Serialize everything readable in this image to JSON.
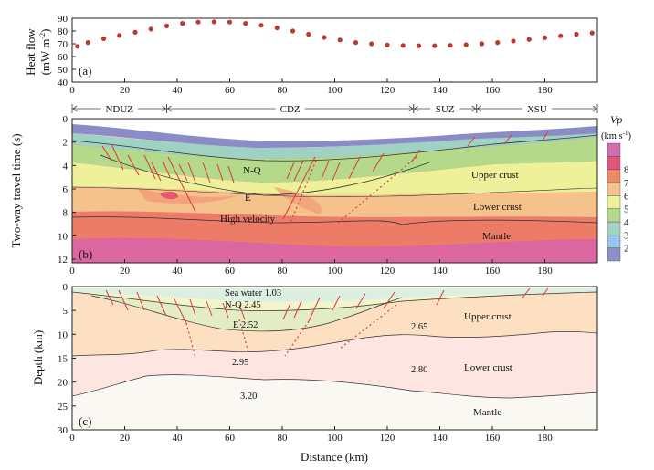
{
  "figure": {
    "panel_a": {
      "label": "(a)",
      "ylabel_line1": "Heat flow",
      "ylabel_line2": "(mW m",
      "ylabel_sup": "-2",
      "ylabel_close": ")",
      "yticks": [
        "40",
        "50",
        "60",
        "70",
        "80",
        "90"
      ],
      "xticks": [
        "0",
        "20",
        "40",
        "60",
        "80",
        "100",
        "120",
        "140",
        "160",
        "180"
      ]
    },
    "zones": [
      {
        "name": "NDUZ",
        "start": 0,
        "end": 36
      },
      {
        "name": "CDZ",
        "start": 36,
        "end": 130
      },
      {
        "name": "SUZ",
        "start": 130,
        "end": 154
      },
      {
        "name": "XSU",
        "start": 154,
        "end": 200
      }
    ],
    "panel_b": {
      "label": "(b)",
      "ylabel": "Two-way travel time (s)",
      "yticks": [
        "0",
        "2",
        "4",
        "6",
        "8",
        "10",
        "12"
      ],
      "xticks": [
        "0",
        "20",
        "40",
        "60",
        "80",
        "100",
        "120",
        "140",
        "160",
        "180"
      ],
      "units": {
        "nq": "N-Q",
        "e": "E",
        "high_velocity": "High velocity",
        "upper_crust": "Upper crust",
        "lower_crust": "Lower crust",
        "mantle": "Mantle"
      },
      "colorbar": {
        "title": "Vp",
        "unit": "(km s",
        "unit_sup": "-1",
        "unit_close": ")",
        "ticks": [
          "2",
          "3",
          "4",
          "5",
          "6",
          "7",
          "8"
        ],
        "colors": [
          "#8f8fc8",
          "#98c6ea",
          "#a2d2c0",
          "#b3d98a",
          "#eef09a",
          "#f5c38c",
          "#ef8a66",
          "#e2567b",
          "#cf6fb2"
        ]
      }
    },
    "panel_c": {
      "label": "(c)",
      "ylabel": "Depth (km)",
      "xlabel": "Distance (km)",
      "yticks": [
        "0",
        "5",
        "10",
        "15",
        "20",
        "25",
        "30"
      ],
      "xticks": [
        "0",
        "20",
        "40",
        "60",
        "80",
        "100",
        "120",
        "140",
        "160",
        "180"
      ],
      "annotations": {
        "sea_water": "Sea water  1.03",
        "nq": "N-Q  2.45",
        "e": "E  2.52",
        "v295": "2.95",
        "v265": "2.65",
        "v280": "2.80",
        "v320": "3.20",
        "upper_crust": "Upper crust",
        "lower_crust": "Lower crust",
        "mantle": "Mantle"
      }
    }
  },
  "chart_data": {
    "type": "scatter",
    "title": "",
    "xlabel": "Distance (km)",
    "ylabel": "Heat flow (mW m-2)",
    "xlim": [
      0,
      200
    ],
    "ylim": [
      40,
      90
    ],
    "x": [
      2,
      6,
      12,
      18,
      24,
      30,
      36,
      42,
      48,
      54,
      60,
      66,
      72,
      78,
      84,
      90,
      96,
      102,
      108,
      114,
      120,
      126,
      132,
      138,
      144,
      150,
      156,
      162,
      168,
      174,
      180,
      186,
      192,
      198
    ],
    "y": [
      68,
      71,
      74,
      76.5,
      79,
      81.5,
      84,
      86,
      87,
      87.2,
      87,
      86,
      84.5,
      82.5,
      80,
      77.5,
      75,
      73,
      71,
      70,
      69,
      68.7,
      68.5,
      68.5,
      68.8,
      69.3,
      70,
      71,
      72.2,
      73.4,
      74.8,
      76.2,
      77.5,
      78.5
    ]
  }
}
